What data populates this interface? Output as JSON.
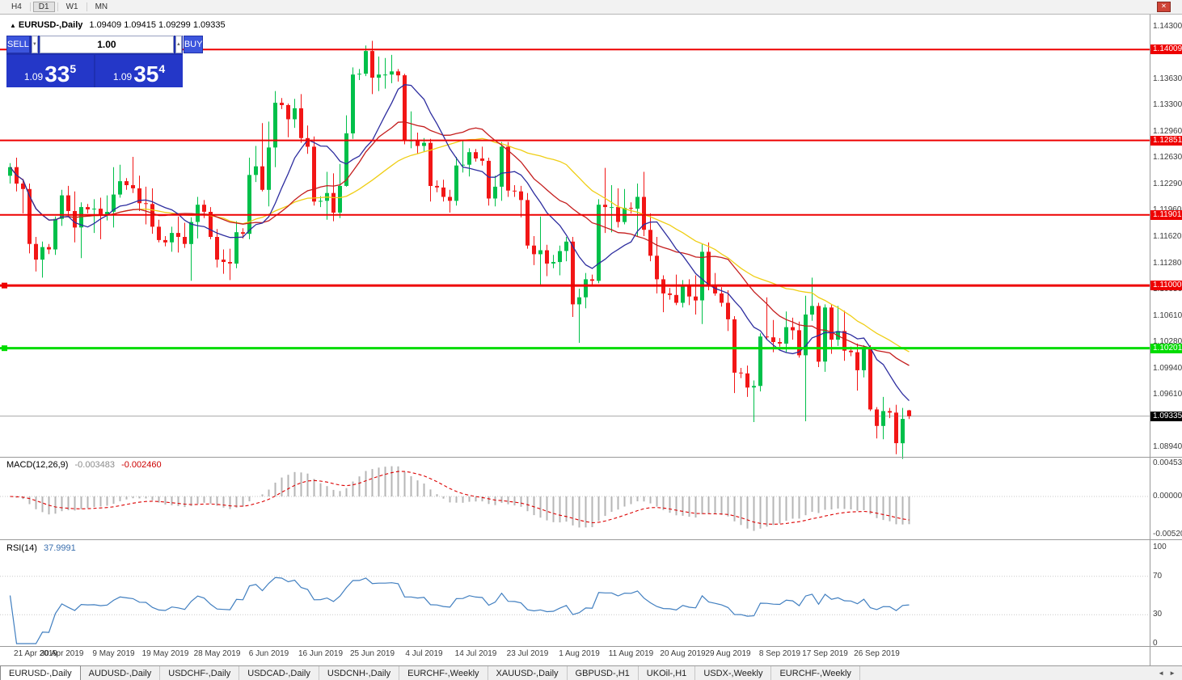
{
  "toolbar": {
    "timeframes": [
      "H4",
      "D1",
      "W1",
      "MN"
    ],
    "active": "D1"
  },
  "window": {
    "title_symbol": "EURUSD-,Daily",
    "ohlc": "1.09409 1.09415 1.09299 1.09335"
  },
  "icons": {
    "close": "✕",
    "chart": "▲",
    "spin_up": "▲",
    "spin_down": "▼",
    "tab_scroll_left": "◄",
    "tab_scroll_right": "►"
  },
  "trade_panel": {
    "sell_label": "SELL",
    "buy_label": "BUY",
    "lot_value": "1.00",
    "sell_price": {
      "prefix": "1.09",
      "big": "33",
      "sup": "5"
    },
    "buy_price": {
      "prefix": "1.09",
      "big": "35",
      "sup": "4"
    }
  },
  "indicators": {
    "macd": {
      "name": "MACD(12,26,9)",
      "value_main": "-0.003483",
      "value_signal": "-0.002460",
      "params": {
        "fast": 12,
        "slow": 26,
        "signal": 9
      },
      "axis_ticks": [
        "0.004536",
        "0.000000",
        "-0.005205"
      ]
    },
    "rsi": {
      "name": "RSI(14)",
      "value": "37.9991",
      "params": {
        "period": 14
      },
      "axis_ticks": [
        "100",
        "70",
        "30",
        "0"
      ],
      "levels": [
        70,
        30
      ]
    }
  },
  "tabs": {
    "active_index": 0,
    "items": [
      "EURUSD-,Daily",
      "AUDUSD-,Daily",
      "USDCHF-,Daily",
      "USDCAD-,Daily",
      "USDCNH-,Daily",
      "EURCHF-,Weekly",
      "XAUUSD-,Daily",
      "GBPUSD-,H1",
      "UKOil-,H1",
      "USDX-,Weekly",
      "EURCHF-,Weekly"
    ]
  },
  "colors": {
    "bull": "#00c04a",
    "bear": "#f21616",
    "macd_hist": "#b6b6b6",
    "macd_signal": "#dc0000",
    "rsi": "#417fc0",
    "bid_line": "#a8a8a8",
    "badge_current_bg": "#000000",
    "accent_blue": "#2437c8"
  },
  "chart_data": {
    "type": "candlestick",
    "title": "EURUSD-,Daily",
    "current_price": "1.09335",
    "price_axis": {
      "ticks": [
        "1.14300",
        "1.13630",
        "1.13300",
        "1.12960",
        "1.12630",
        "1.12290",
        "1.11960",
        "1.11620",
        "1.11280",
        "1.10950",
        "1.10610",
        "1.10280",
        "1.09940",
        "1.09610",
        "1.08940"
      ]
    },
    "levels": [
      {
        "label": "1.14009",
        "price": 1.14009,
        "color": "#ee0000",
        "width": 2,
        "handle": false
      },
      {
        "label": "1.12851",
        "price": 1.12851,
        "color": "#ee0000",
        "width": 2,
        "handle": false
      },
      {
        "label": "1.11901",
        "price": 1.11901,
        "color": "#ee0000",
        "width": 2,
        "handle": false
      },
      {
        "label": "1.11000",
        "price": 1.11,
        "color": "#ee0000",
        "width": 3,
        "handle": true
      },
      {
        "label": "1.10201",
        "price": 1.10201,
        "color": "#00dc00",
        "width": 3,
        "handle": true
      }
    ],
    "moving_averages": [
      {
        "type": "sma",
        "period": 34,
        "color": "#efce15"
      },
      {
        "type": "sma",
        "period": 21,
        "color": "#c41d1d"
      },
      {
        "type": "sma",
        "period": 10,
        "color": "#2d2d9f"
      }
    ],
    "x_axis": {
      "labels": [
        {
          "i": 0,
          "t": "21 Apr 2019"
        },
        {
          "i": 8,
          "t": "30 Apr 2019"
        },
        {
          "i": 16,
          "t": "9 May 2019"
        },
        {
          "i": 24,
          "t": "19 May 2019"
        },
        {
          "i": 32,
          "t": "28 May 2019"
        },
        {
          "i": 40,
          "t": "6 Jun 2019"
        },
        {
          "i": 48,
          "t": "16 Jun 2019"
        },
        {
          "i": 56,
          "t": "25 Jun 2019"
        },
        {
          "i": 64,
          "t": "4 Jul 2019"
        },
        {
          "i": 72,
          "t": "14 Jul 2019"
        },
        {
          "i": 80,
          "t": "23 Jul 2019"
        },
        {
          "i": 88,
          "t": "1 Aug 2019"
        },
        {
          "i": 96,
          "t": "11 Aug 2019"
        },
        {
          "i": 104,
          "t": "20 Aug 2019"
        },
        {
          "i": 111,
          "t": "29 Aug 2019"
        },
        {
          "i": 119,
          "t": "8 Sep 2019"
        },
        {
          "i": 126,
          "t": "17 Sep 2019"
        },
        {
          "i": 134,
          "t": "26 Sep 2019"
        }
      ]
    },
    "candles": [
      [
        1.124,
        1.1256,
        1.123,
        1.1251
      ],
      [
        1.1251,
        1.1263,
        1.122,
        1.123
      ],
      [
        1.123,
        1.1236,
        1.1192,
        1.1223
      ],
      [
        1.1223,
        1.123,
        1.1141,
        1.1153
      ],
      [
        1.1153,
        1.1162,
        1.1118,
        1.1133
      ],
      [
        1.1133,
        1.1156,
        1.111,
        1.1149
      ],
      [
        1.1149,
        1.1153,
        1.114,
        1.1146
      ],
      [
        1.1146,
        1.1188,
        1.1139,
        1.1185
      ],
      [
        1.1185,
        1.1222,
        1.1176,
        1.1215
      ],
      [
        1.1215,
        1.1227,
        1.1187,
        1.1195
      ],
      [
        1.1195,
        1.122,
        1.1155,
        1.1174
      ],
      [
        1.1174,
        1.1206,
        1.1135,
        1.12
      ],
      [
        1.12,
        1.1204,
        1.1192,
        1.1197
      ],
      [
        1.1197,
        1.121,
        1.1167,
        1.1198
      ],
      [
        1.1198,
        1.1212,
        1.1159,
        1.1191
      ],
      [
        1.1191,
        1.1215,
        1.1183,
        1.1194
      ],
      [
        1.1194,
        1.1251,
        1.1174,
        1.1216
      ],
      [
        1.1216,
        1.1254,
        1.1212,
        1.1233
      ],
      [
        1.1233,
        1.1237,
        1.1222,
        1.1228
      ],
      [
        1.1228,
        1.1264,
        1.1218,
        1.1224
      ],
      [
        1.1224,
        1.124,
        1.1195,
        1.1205
      ],
      [
        1.1205,
        1.1226,
        1.1178,
        1.1204
      ],
      [
        1.1204,
        1.1224,
        1.1166,
        1.1175
      ],
      [
        1.1175,
        1.1184,
        1.1155,
        1.1158
      ],
      [
        1.1158,
        1.1163,
        1.115,
        1.1155
      ],
      [
        1.1155,
        1.1175,
        1.1143,
        1.1167
      ],
      [
        1.1167,
        1.1188,
        1.1142,
        1.1162
      ],
      [
        1.1162,
        1.118,
        1.1148,
        1.1153
      ],
      [
        1.1153,
        1.1187,
        1.1106,
        1.1181
      ],
      [
        1.1181,
        1.1213,
        1.116,
        1.1203
      ],
      [
        1.1203,
        1.1209,
        1.1186,
        1.1194
      ],
      [
        1.1194,
        1.12,
        1.1159,
        1.1162
      ],
      [
        1.1162,
        1.1172,
        1.1123,
        1.1133
      ],
      [
        1.1133,
        1.1146,
        1.1115,
        1.113
      ],
      [
        1.113,
        1.1147,
        1.1107,
        1.1128
      ],
      [
        1.1128,
        1.1182,
        1.1122,
        1.1168
      ],
      [
        1.1168,
        1.1173,
        1.116,
        1.1166
      ],
      [
        1.1166,
        1.1263,
        1.1159,
        1.1241
      ],
      [
        1.1241,
        1.1278,
        1.1232,
        1.1252
      ],
      [
        1.1252,
        1.1307,
        1.122,
        1.1222
      ],
      [
        1.1222,
        1.1309,
        1.1201,
        1.1276
      ],
      [
        1.1276,
        1.1348,
        1.1251,
        1.1333
      ],
      [
        1.1333,
        1.1339,
        1.1325,
        1.133
      ],
      [
        1.133,
        1.1332,
        1.1289,
        1.1312
      ],
      [
        1.1312,
        1.1338,
        1.1301,
        1.1326
      ],
      [
        1.1326,
        1.1344,
        1.1282,
        1.1288
      ],
      [
        1.1288,
        1.1304,
        1.1268,
        1.1277
      ],
      [
        1.1277,
        1.129,
        1.1202,
        1.1207
      ],
      [
        1.1207,
        1.1214,
        1.12,
        1.1208
      ],
      [
        1.1208,
        1.1245,
        1.1184,
        1.1218
      ],
      [
        1.1218,
        1.1243,
        1.1182,
        1.1193
      ],
      [
        1.1193,
        1.1255,
        1.1186,
        1.1227
      ],
      [
        1.1227,
        1.1317,
        1.1226,
        1.1294
      ],
      [
        1.1294,
        1.1378,
        1.1287,
        1.1369
      ],
      [
        1.1369,
        1.1376,
        1.1362,
        1.137
      ],
      [
        1.137,
        1.1406,
        1.1367,
        1.1399
      ],
      [
        1.1399,
        1.1412,
        1.1344,
        1.1365
      ],
      [
        1.1365,
        1.1392,
        1.1348,
        1.1369
      ],
      [
        1.1369,
        1.139,
        1.1351,
        1.1369
      ],
      [
        1.1369,
        1.1394,
        1.1358,
        1.1373
      ],
      [
        1.1373,
        1.1376,
        1.136,
        1.1368
      ],
      [
        1.1368,
        1.137,
        1.128,
        1.1285
      ],
      [
        1.1285,
        1.1322,
        1.1275,
        1.1285
      ],
      [
        1.1285,
        1.1295,
        1.1268,
        1.1278
      ],
      [
        1.1278,
        1.1288,
        1.127,
        1.1282
      ],
      [
        1.1282,
        1.1287,
        1.1207,
        1.1227
      ],
      [
        1.1227,
        1.1234,
        1.1219,
        1.1225
      ],
      [
        1.1225,
        1.1235,
        1.1207,
        1.1213
      ],
      [
        1.1213,
        1.1222,
        1.1193,
        1.1208
      ],
      [
        1.1208,
        1.1264,
        1.1202,
        1.1253
      ],
      [
        1.1253,
        1.1285,
        1.1244,
        1.1254
      ],
      [
        1.1254,
        1.1275,
        1.1239,
        1.127
      ],
      [
        1.127,
        1.1274,
        1.1258,
        1.1262
      ],
      [
        1.1262,
        1.1277,
        1.1253,
        1.1259
      ],
      [
        1.1259,
        1.1263,
        1.1202,
        1.1211
      ],
      [
        1.1211,
        1.124,
        1.1201,
        1.1226
      ],
      [
        1.1226,
        1.1283,
        1.1208,
        1.1277
      ],
      [
        1.1277,
        1.1283,
        1.1213,
        1.1221
      ],
      [
        1.1221,
        1.1228,
        1.1213,
        1.122
      ],
      [
        1.122,
        1.1227,
        1.1187,
        1.1209
      ],
      [
        1.1209,
        1.1218,
        1.1147,
        1.1151
      ],
      [
        1.1151,
        1.1163,
        1.1126,
        1.114
      ],
      [
        1.114,
        1.1188,
        1.1101,
        1.1145
      ],
      [
        1.1145,
        1.1152,
        1.1112,
        1.1128
      ],
      [
        1.1128,
        1.1139,
        1.1122,
        1.113
      ],
      [
        1.113,
        1.1151,
        1.1113,
        1.1144
      ],
      [
        1.1144,
        1.1162,
        1.1131,
        1.1156
      ],
      [
        1.1156,
        1.1162,
        1.106,
        1.1076
      ],
      [
        1.1076,
        1.1096,
        1.1027,
        1.1085
      ],
      [
        1.1085,
        1.1116,
        1.1071,
        1.1108
      ],
      [
        1.1108,
        1.1114,
        1.1101,
        1.1106
      ],
      [
        1.1106,
        1.121,
        1.1103,
        1.1203
      ],
      [
        1.1203,
        1.125,
        1.1167,
        1.12
      ],
      [
        1.12,
        1.1228,
        1.1168,
        1.12
      ],
      [
        1.12,
        1.1224,
        1.1174,
        1.1181
      ],
      [
        1.1181,
        1.1223,
        1.1178,
        1.1199
      ],
      [
        1.1199,
        1.1206,
        1.1192,
        1.1198
      ],
      [
        1.1198,
        1.123,
        1.1163,
        1.1213
      ],
      [
        1.1213,
        1.1245,
        1.1163,
        1.1171
      ],
      [
        1.1171,
        1.1192,
        1.1131,
        1.1138
      ],
      [
        1.1138,
        1.1162,
        1.109,
        1.1108
      ],
      [
        1.1108,
        1.1113,
        1.1066,
        1.109
      ],
      [
        1.109,
        1.1097,
        1.1082,
        1.1088
      ],
      [
        1.1088,
        1.1114,
        1.1075,
        1.1078
      ],
      [
        1.1078,
        1.1107,
        1.1072,
        1.1099
      ],
      [
        1.1099,
        1.1108,
        1.1075,
        1.1086
      ],
      [
        1.1086,
        1.1113,
        1.1063,
        1.1081
      ],
      [
        1.1081,
        1.1153,
        1.1051,
        1.1143
      ],
      [
        1.1143,
        1.1155,
        1.1094,
        1.1101
      ],
      [
        1.1101,
        1.1116,
        1.1087,
        1.109
      ],
      [
        1.109,
        1.1098,
        1.1073,
        1.1078
      ],
      [
        1.1078,
        1.1094,
        1.1042,
        1.1057
      ],
      [
        1.1057,
        1.1061,
        1.0963,
        1.0989
      ],
      [
        1.0989,
        1.0995,
        1.0982,
        1.0988
      ],
      [
        1.0988,
        1.0998,
        1.0958,
        1.097
      ],
      [
        1.097,
        1.0979,
        1.0926,
        1.0972
      ],
      [
        1.0972,
        1.1039,
        1.0965,
        1.1035
      ],
      [
        1.1035,
        1.1085,
        1.1031,
        1.1034
      ],
      [
        1.1034,
        1.1056,
        1.1015,
        1.1028
      ],
      [
        1.1028,
        1.1033,
        1.1022,
        1.1026
      ],
      [
        1.1026,
        1.1067,
        1.1015,
        1.1047
      ],
      [
        1.1047,
        1.1059,
        1.1031,
        1.1043
      ],
      [
        1.1043,
        1.1054,
        1.1008,
        1.1011
      ],
      [
        1.1011,
        1.1087,
        1.0927,
        1.1063
      ],
      [
        1.1063,
        1.111,
        1.1055,
        1.1074
      ],
      [
        1.1074,
        1.1078,
        1.0996,
        1.1003
      ],
      [
        1.1003,
        1.1076,
        1.099,
        1.1072
      ],
      [
        1.1072,
        1.1076,
        1.1013,
        1.1031
      ],
      [
        1.1031,
        1.1074,
        1.1023,
        1.1042
      ],
      [
        1.1042,
        1.1068,
        1.1004,
        1.1017
      ],
      [
        1.1017,
        1.1022,
        1.101,
        1.1015
      ],
      [
        1.1015,
        1.1026,
        1.0966,
        1.0992
      ],
      [
        1.0992,
        1.1024,
        1.0983,
        1.1021
      ],
      [
        1.1021,
        1.1024,
        1.094,
        1.0942
      ],
      [
        1.0942,
        1.0945,
        1.0905,
        1.0921
      ],
      [
        1.0921,
        1.0958,
        1.0904,
        1.094
      ],
      [
        1.094,
        1.0944,
        1.0931,
        1.0938
      ],
      [
        1.0938,
        1.0948,
        1.0885,
        1.0899
      ],
      [
        1.0899,
        1.0944,
        1.0879,
        1.093
      ],
      [
        1.09409,
        1.09415,
        1.09299,
        1.09335
      ]
    ]
  }
}
